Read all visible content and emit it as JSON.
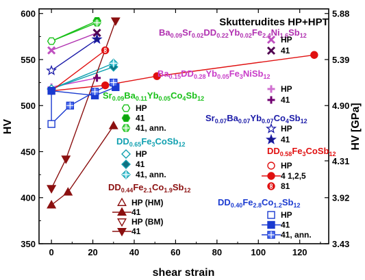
{
  "chart_data": {
    "type": "scatter",
    "title": "Skutterudites HP+HPT",
    "xlabel": "shear strain",
    "ylabel": "HV",
    "y2label": "HV [GPa]",
    "xlim": [
      -6,
      134
    ],
    "ylim": [
      350,
      605
    ],
    "y2lim": [
      3.43,
      5.93
    ],
    "xticks": [
      0,
      20,
      40,
      60,
      80,
      100,
      120
    ],
    "yticks": [
      350,
      400,
      450,
      500,
      550,
      600
    ],
    "y2ticks": [
      "3.43",
      "3.92",
      "4.31",
      "4.90",
      "5.39",
      "5.88"
    ],
    "y2tick_values": [
      350,
      400,
      440,
      500,
      550,
      600
    ],
    "groups": [
      {
        "name": "Ba0.09Sr0.02DD0.22Yb0.02Fe2.4Ni1.6Sb12",
        "color": "#b030b0",
        "entries": [
          {
            "label": "HP",
            "marker": "x",
            "fill": "#c050c0",
            "x": [
              0
            ],
            "y": [
              560
            ]
          },
          {
            "label": "41",
            "marker": "x",
            "fill": "#500050",
            "x": [
              22
            ],
            "y": [
              579
            ]
          }
        ]
      },
      {
        "name": "Ba0.15DD0.28Yb0.05Fe3NiSb12",
        "color": "#c83cc8",
        "entries": [
          {
            "label": "HP",
            "marker": "plus",
            "fill": "#d070d0",
            "x": [
              0
            ],
            "y": [
              520
            ]
          },
          {
            "label": "41",
            "marker": "plus",
            "fill": "#700070",
            "x": [
              22
            ],
            "y": [
              530
            ]
          }
        ]
      },
      {
        "name": "Sr0.09Ba0.11Yb0.05Co4Sb12",
        "color": "#18c018",
        "entries": [
          {
            "label": "HP",
            "marker": "hexagon",
            "fill": "none",
            "x": [
              0
            ],
            "y": [
              570
            ]
          },
          {
            "label": "41",
            "marker": "hexagon",
            "fill": "#10a010",
            "x": [
              22
            ],
            "y": [
              592
            ]
          },
          {
            "label": "41, ann.",
            "marker": "hexagon-cross",
            "fill": "#70e070",
            "x": [
              22
            ],
            "y": [
              590
            ]
          }
        ]
      },
      {
        "name": "Sr0.07Ba0.07Yb0.07Co4Sb12",
        "color": "#1a1aa8",
        "entries": [
          {
            "label": "HP",
            "marker": "star",
            "fill": "none",
            "x": [
              0
            ],
            "y": [
              538
            ]
          },
          {
            "label": "41",
            "marker": "star",
            "fill": "#1a1a80",
            "x": [
              22
            ],
            "y": [
              572
            ]
          }
        ]
      },
      {
        "name": "DD0.65Fe3CoSb12",
        "color": "#10a0b0",
        "entries": [
          {
            "label": "HP",
            "marker": "diamond",
            "fill": "none",
            "x": [
              0
            ],
            "y": [
              518
            ]
          },
          {
            "label": "41",
            "marker": "diamond",
            "fill": "#107080",
            "x": [
              30
            ],
            "y": [
              542
            ]
          },
          {
            "label": "41, ann.",
            "marker": "diamond-cross",
            "fill": "#60d0e0",
            "x": [
              30
            ],
            "y": [
              546
            ]
          }
        ]
      },
      {
        "name": "DD0.58Fe3CoSb12",
        "color": "#e01010",
        "entries": [
          {
            "label": "HP",
            "marker": "circle",
            "fill": "none",
            "x": [
              0
            ],
            "y": [
              516
            ]
          },
          {
            "label": "4 1,2,5",
            "marker": "circle",
            "fill": "#e01010",
            "x": [
              0,
              26,
              51,
              127
            ],
            "y": [
              516,
              522,
              532,
              555
            ]
          },
          {
            "label": "81",
            "marker": "circle-eight",
            "fill": "#e01010",
            "x": [
              26
            ],
            "y": [
              560
            ]
          }
        ]
      },
      {
        "name": "DD0.44Fe2.1Co1.9Sb12",
        "color": "#8b1010",
        "entries": [
          {
            "label": "HP (HM)",
            "marker": "triangle-up",
            "fill": "none",
            "x": [
              0
            ],
            "y": [
              392
            ]
          },
          {
            "label": "41",
            "marker": "triangle-up",
            "fill": "#8b1010",
            "x": [
              0,
              8,
              30
            ],
            "y": [
              392,
              406,
              478
            ]
          },
          {
            "label": "HP (BM)",
            "marker": "triangle-down",
            "fill": "none",
            "x": [
              0
            ],
            "y": [
              410
            ]
          },
          {
            "label": "41",
            "marker": "triangle-down",
            "fill": "#8b1010",
            "x": [
              0,
              7,
              31
            ],
            "y": [
              410,
              442,
              592
            ]
          }
        ]
      },
      {
        "name": "DD0.40Fe2.8Co1.2Sb12",
        "color": "#1a3ad0",
        "entries": [
          {
            "label": "HP",
            "marker": "square",
            "fill": "none",
            "x": [
              0
            ],
            "y": [
              480
            ]
          },
          {
            "label": "41",
            "marker": "square",
            "fill": "#1a3ad0",
            "x": [
              0,
              21,
              31
            ],
            "y": [
              516,
              511,
              520
            ]
          },
          {
            "label": "41, ann.",
            "marker": "square-cross",
            "fill": "#5070f0",
            "x": [
              9,
              21,
              30
            ],
            "y": [
              500,
              515,
              525
            ]
          }
        ]
      }
    ],
    "legend_layout": [
      {
        "group": 0,
        "head": [
          [
            "Ba",
            ""
          ],
          [
            "0.09",
            "s"
          ],
          [
            "Sr",
            ""
          ],
          [
            "0.02",
            "s"
          ],
          [
            "DD",
            ""
          ],
          [
            "0.22",
            "s"
          ],
          [
            "Yb",
            ""
          ],
          [
            "0.02",
            "s"
          ],
          [
            "Fe",
            ""
          ],
          [
            "2.4",
            "s"
          ],
          [
            "Ni",
            ""
          ],
          [
            "1.6",
            "s"
          ],
          [
            "Sb",
            ""
          ],
          [
            "12",
            "s"
          ]
        ]
      },
      {
        "group": 1,
        "head": [
          [
            "Ba",
            ""
          ],
          [
            "0.15",
            "s"
          ],
          [
            "DD",
            ""
          ],
          [
            "0.28",
            "s"
          ],
          [
            "Yb",
            ""
          ],
          [
            "0.05",
            "s"
          ],
          [
            "Fe",
            ""
          ],
          [
            "3",
            "s"
          ],
          [
            "NiSb",
            ""
          ],
          [
            "12",
            "s"
          ]
        ]
      },
      {
        "group": 2,
        "head": [
          [
            "Sr",
            ""
          ],
          [
            "0.09",
            "s"
          ],
          [
            "Ba",
            ""
          ],
          [
            "0.11",
            "s"
          ],
          [
            "Yb",
            ""
          ],
          [
            "0.05",
            "s"
          ],
          [
            "Co",
            ""
          ],
          [
            "4",
            "s"
          ],
          [
            "Sb",
            ""
          ],
          [
            "12",
            "s"
          ]
        ]
      },
      {
        "group": 3,
        "head": [
          [
            "Sr",
            ""
          ],
          [
            "0.07",
            "s"
          ],
          [
            "Ba",
            ""
          ],
          [
            "0.07",
            "s"
          ],
          [
            "Yb",
            ""
          ],
          [
            "0.07",
            "s"
          ],
          [
            "Co",
            ""
          ],
          [
            "4",
            "s"
          ],
          [
            "Sb",
            ""
          ],
          [
            "12",
            "s"
          ]
        ]
      },
      {
        "group": 4,
        "head": [
          [
            "DD",
            ""
          ],
          [
            "0.65",
            "s"
          ],
          [
            "Fe",
            ""
          ],
          [
            "3",
            "s"
          ],
          [
            "CoSb",
            ""
          ],
          [
            "12",
            "s"
          ]
        ]
      },
      {
        "group": 5,
        "head": [
          [
            "DD",
            ""
          ],
          [
            "0.58",
            "s"
          ],
          [
            "Fe",
            ""
          ],
          [
            "3",
            "s"
          ],
          [
            "CoSb",
            ""
          ],
          [
            "12",
            "s"
          ]
        ]
      },
      {
        "group": 6,
        "head": [
          [
            "DD",
            ""
          ],
          [
            "0.44",
            "s"
          ],
          [
            "Fe",
            ""
          ],
          [
            "2.1",
            "s"
          ],
          [
            "Co",
            ""
          ],
          [
            "1.9",
            "s"
          ],
          [
            "Sb",
            ""
          ],
          [
            "12",
            "s"
          ]
        ]
      },
      {
        "group": 7,
        "head": [
          [
            "DD",
            ""
          ],
          [
            "0.40",
            "s"
          ],
          [
            "Fe",
            ""
          ],
          [
            "2.8",
            "s"
          ],
          [
            "Co",
            ""
          ],
          [
            "1.2",
            "s"
          ],
          [
            "Sb",
            ""
          ],
          [
            "12",
            "s"
          ]
        ]
      }
    ],
    "grid": false
  }
}
